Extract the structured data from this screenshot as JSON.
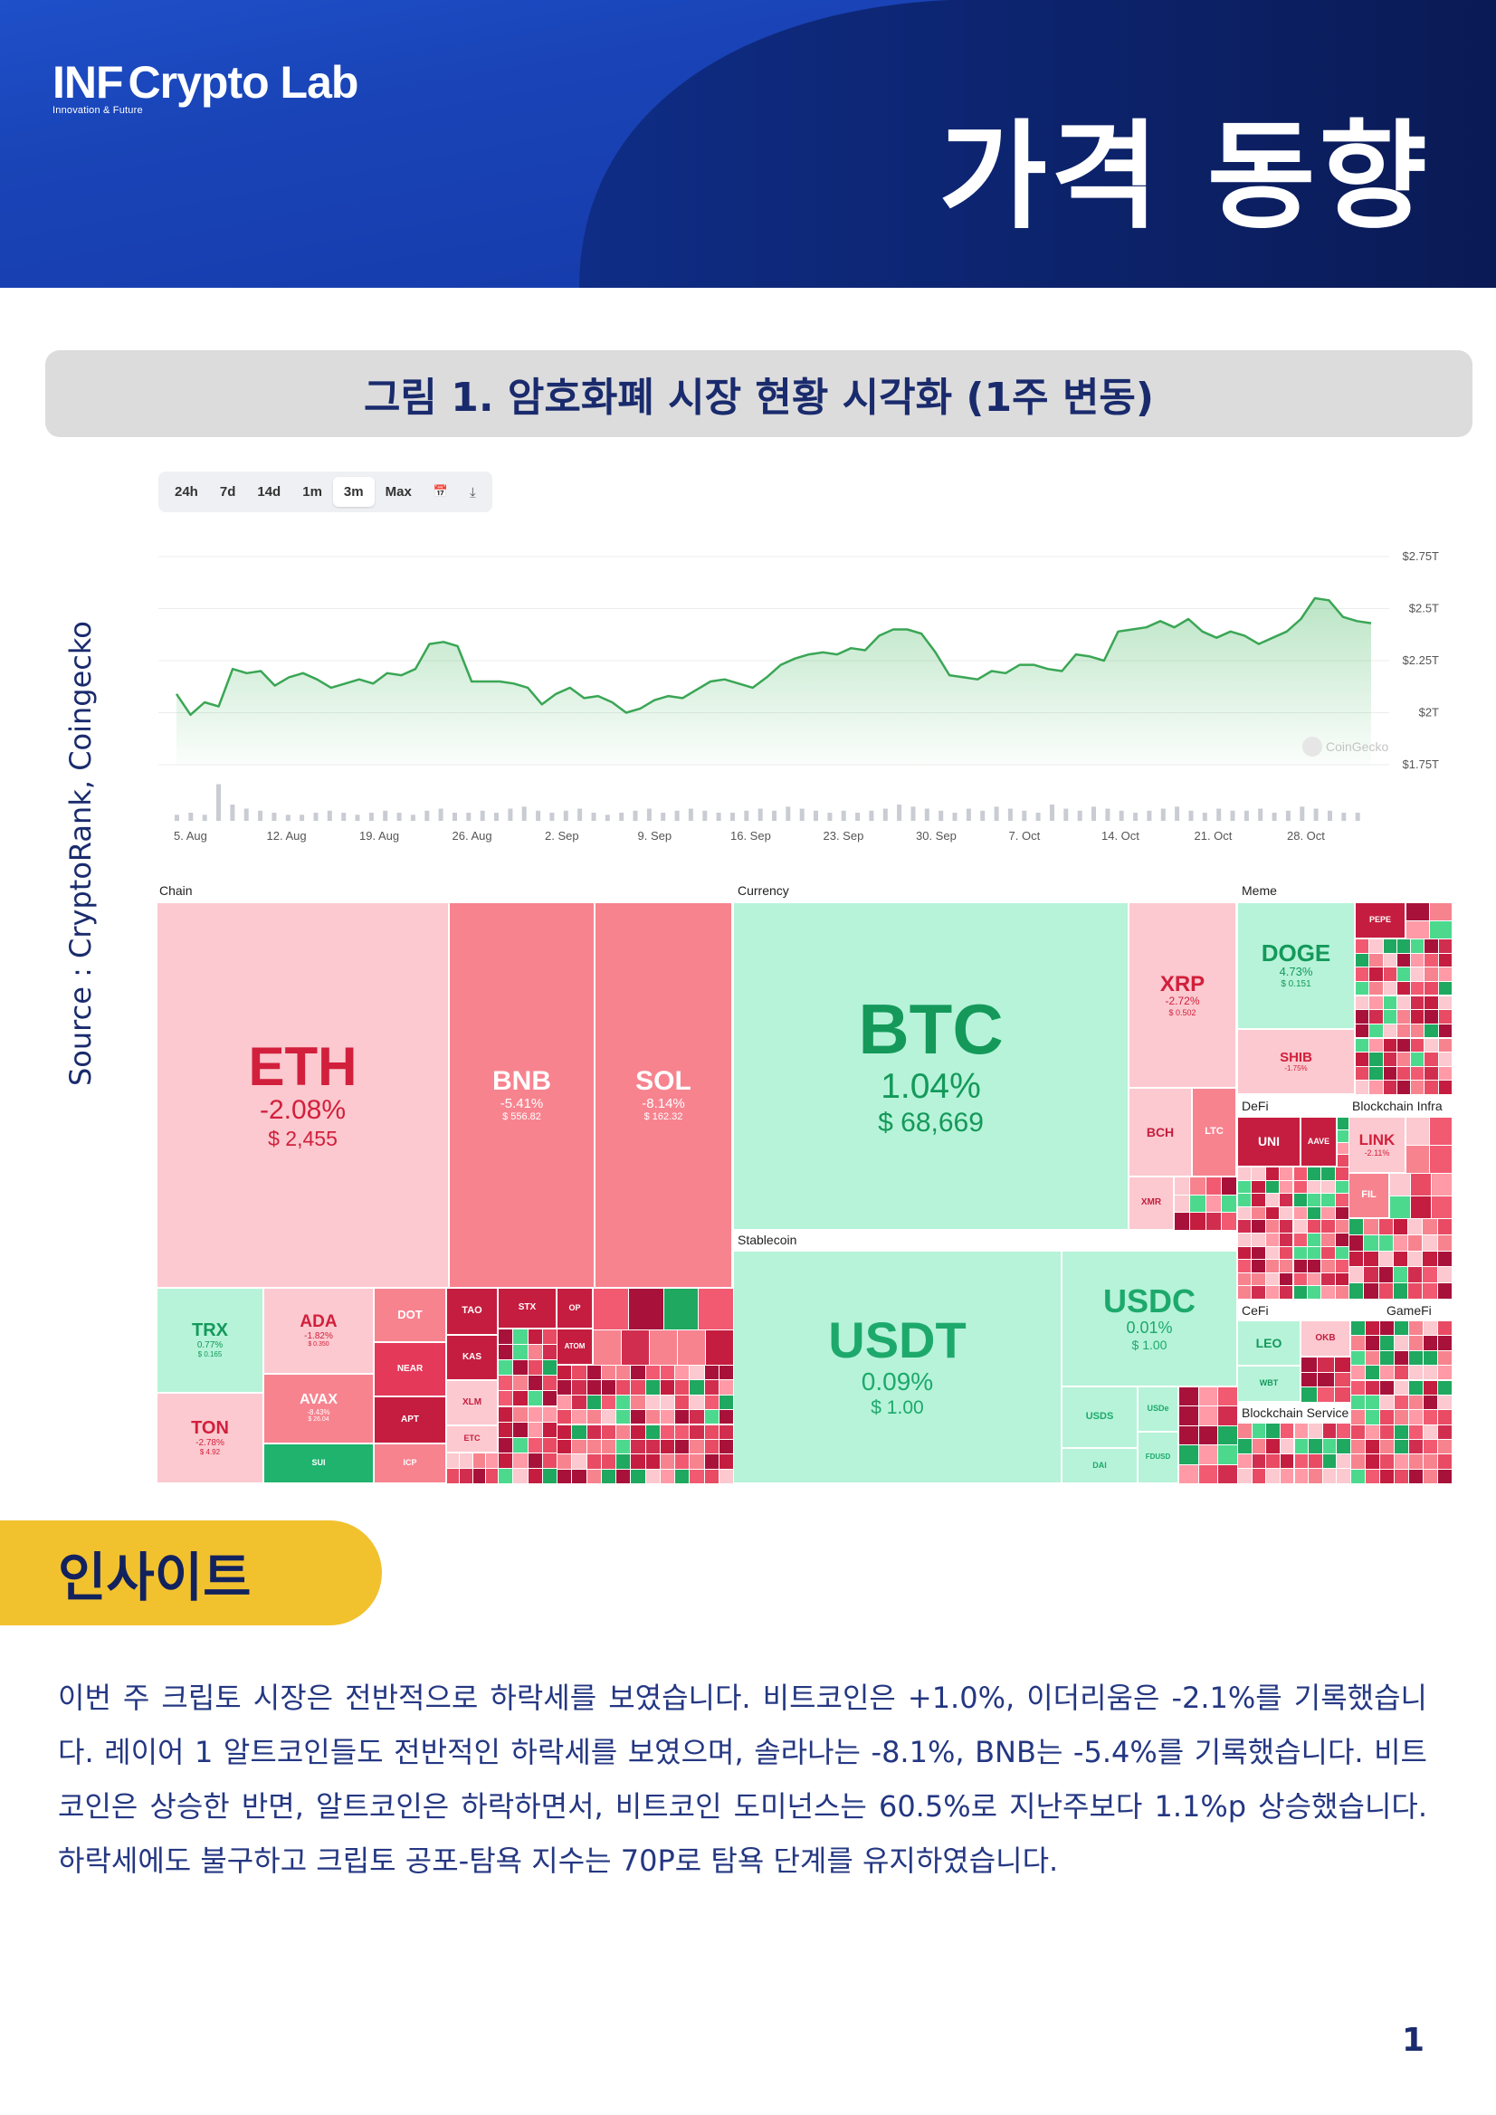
{
  "header": {
    "logo_inf": "INF",
    "logo_name": "Crypto Lab",
    "logo_tagline": "Innovation & Future",
    "title": "가격 동향"
  },
  "figure": {
    "caption": "그림 1. 암호화폐 시장 현황 시각화 (1주 변동)",
    "source": "Source : CryptoRank, Coingecko"
  },
  "chart_controls": {
    "ranges": [
      "24h",
      "7d",
      "14d",
      "1m",
      "3m",
      "Max"
    ],
    "selected": "3m",
    "calendar_icon": "calendar-icon",
    "download_icon": "download-icon"
  },
  "chart_data": {
    "type": "area",
    "watermark": "CoinGecko",
    "y_ticks": [
      "$2.75T",
      "$2.5T",
      "$2.25T",
      "$2T",
      "$1.75T"
    ],
    "ylim": [
      1.75,
      2.75
    ],
    "x_ticks": [
      "5. Aug",
      "12. Aug",
      "19. Aug",
      "26. Aug",
      "2. Sep",
      "9. Sep",
      "16. Sep",
      "23. Sep",
      "30. Sep",
      "7. Oct",
      "14. Oct",
      "21. Oct",
      "28. Oct"
    ],
    "series": [
      {
        "values": [
          2.09,
          1.99,
          2.05,
          2.03,
          2.21,
          2.19,
          2.2,
          2.13,
          2.17,
          2.19,
          2.16,
          2.12,
          2.14,
          2.16,
          2.14,
          2.19,
          2.18,
          2.21,
          2.33,
          2.34,
          2.32,
          2.15,
          2.15,
          2.15,
          2.14,
          2.12,
          2.04,
          2.09,
          2.12,
          2.07,
          2.08,
          2.05,
          2.0,
          2.02,
          2.06,
          2.08,
          2.07,
          2.11,
          2.15,
          2.16,
          2.14,
          2.12,
          2.17,
          2.23,
          2.26,
          2.28,
          2.29,
          2.28,
          2.31,
          2.3,
          2.37,
          2.4,
          2.4,
          2.38,
          2.29,
          2.18,
          2.17,
          2.16,
          2.2,
          2.19,
          2.23,
          2.23,
          2.21,
          2.2,
          2.28,
          2.27,
          2.25,
          2.39,
          2.4,
          2.41,
          2.44,
          2.41,
          2.45,
          2.39,
          2.36,
          2.39,
          2.37,
          2.33,
          2.36,
          2.39,
          2.45,
          2.55,
          2.54,
          2.46,
          2.44,
          2.43
        ],
        "volume": [
          3,
          4,
          3,
          18,
          8,
          6,
          5,
          4,
          3,
          3,
          4,
          5,
          4,
          3,
          4,
          5,
          4,
          3,
          5,
          6,
          4,
          4,
          5,
          4,
          6,
          7,
          5,
          4,
          5,
          6,
          4,
          3,
          4,
          5,
          6,
          4,
          5,
          6,
          5,
          4,
          4,
          5,
          6,
          5,
          7,
          6,
          5,
          4,
          5,
          4,
          5,
          6,
          8,
          7,
          6,
          5,
          4,
          6,
          5,
          7,
          6,
          5,
          4,
          8,
          6,
          5,
          7,
          6,
          5,
          4,
          5,
          6,
          7,
          5,
          4,
          6,
          5,
          5,
          6,
          4,
          5,
          7,
          6,
          5,
          4,
          4
        ]
      }
    ]
  },
  "treemap": {
    "sections": [
      "Chain",
      "Currency",
      "Meme",
      "Stablecoin",
      "DeFi",
      "Blockchain Infra",
      "CeFi",
      "GameFi",
      "Blockchain Service"
    ],
    "tiles": [
      {
        "symbol": "ETH",
        "change": "-2.08%",
        "price": "$ 2,455"
      },
      {
        "symbol": "BNB",
        "change": "-5.41%",
        "price": "$ 556.82"
      },
      {
        "symbol": "SOL",
        "change": "-8.14%",
        "price": "$ 162.32"
      },
      {
        "symbol": "TRX",
        "change": "0.77%",
        "price": "$ 0.165"
      },
      {
        "symbol": "ADA",
        "change": "-1.82%",
        "price": "$ 0.350"
      },
      {
        "symbol": "AVAX",
        "change": "-8.43%",
        "price": "$ 26.04"
      },
      {
        "symbol": "TON",
        "change": "-2.78%",
        "price": "$ 4.92"
      },
      {
        "symbol": "DOT"
      },
      {
        "symbol": "NEAR"
      },
      {
        "symbol": "APT"
      },
      {
        "symbol": "TAO"
      },
      {
        "symbol": "STX"
      },
      {
        "symbol": "OP"
      },
      {
        "symbol": "KAS"
      },
      {
        "symbol": "ATOM"
      },
      {
        "symbol": "XLM"
      },
      {
        "symbol": "ETC"
      },
      {
        "symbol": "SUI"
      },
      {
        "symbol": "ICP"
      },
      {
        "symbol": "BTC",
        "change": "1.04%",
        "price": "$ 68,669"
      },
      {
        "symbol": "XRP",
        "change": "-2.72%",
        "price": "$ 0.502"
      },
      {
        "symbol": "BCH"
      },
      {
        "symbol": "LTC"
      },
      {
        "symbol": "XMR"
      },
      {
        "symbol": "USDT",
        "change": "0.09%",
        "price": "$ 1.00"
      },
      {
        "symbol": "USDC",
        "change": "0.01%",
        "price": "$ 1.00"
      },
      {
        "symbol": "USDS"
      },
      {
        "symbol": "USDe"
      },
      {
        "symbol": "DAI"
      },
      {
        "symbol": "FDUSD"
      },
      {
        "symbol": "DOGE",
        "change": "4.73%",
        "price": "$ 0.151"
      },
      {
        "symbol": "SHIB",
        "change": "-1.75%"
      },
      {
        "symbol": "PEPE"
      },
      {
        "symbol": "UNI"
      },
      {
        "symbol": "AAVE"
      },
      {
        "symbol": "LINK",
        "change": "-2.11%"
      },
      {
        "symbol": "FIL"
      },
      {
        "symbol": "LEO"
      },
      {
        "symbol": "OKB"
      },
      {
        "symbol": "WBT"
      }
    ]
  },
  "insight": {
    "heading": "인사이트",
    "body": "이번 주 크립토 시장은 전반적으로 하락세를 보였습니다. 비트코인은 +1.0%, 이더리움은 -2.1%를 기록했습니다. 레이어 1 알트코인들도 전반적인 하락세를 보였으며, 솔라나는 -8.1%, BNB는 -5.4%를 기록했습니다. 비트코인은 상승한 반면, 알트코인은 하락하면서, 비트코인 도미넌스는 60.5%로 지난주보다 1.1%p 상승했습니다. 하락세에도 불구하고 크립토 공포-탐욕 지수는 70P로 탐욕 단계를 유지하였습니다."
  },
  "page_number": "1",
  "colors": {
    "navy": "#0d2270",
    "accent_yellow": "#f2c12e",
    "up_green": "#b6f3d9",
    "down_red": "#f7838f"
  }
}
